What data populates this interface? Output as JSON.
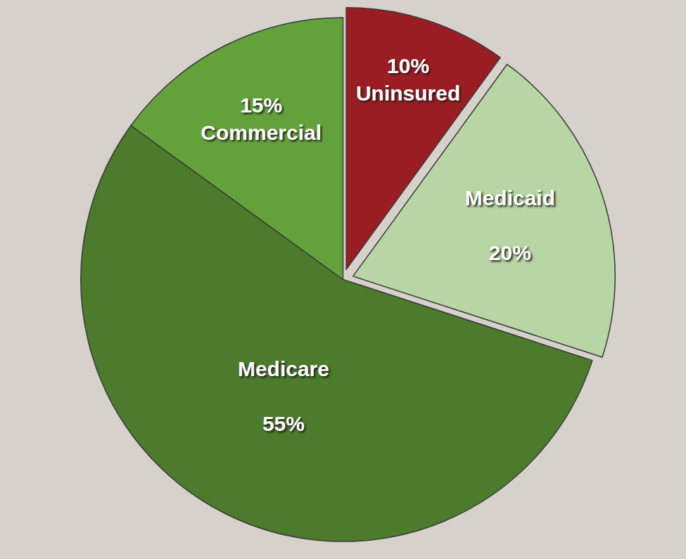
{
  "chart_data": {
    "type": "pie",
    "categories": [
      "Uninsured",
      "Medicaid",
      "Medicare",
      "Commercial"
    ],
    "values": [
      10,
      20,
      55,
      15
    ],
    "value_labels": [
      "10%",
      "20%",
      "55%",
      "15%"
    ],
    "colors": [
      "#9b1d24",
      "#b7d6a3",
      "#4b7b2b",
      "#63a23a"
    ],
    "data_labels": true
  }
}
